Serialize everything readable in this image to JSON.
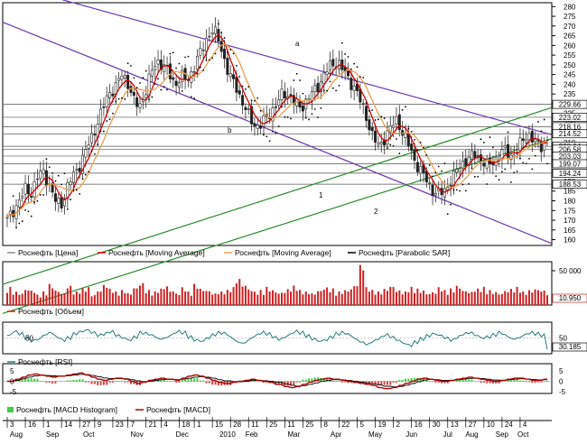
{
  "chart_data": {
    "type": "candlestick",
    "price": {
      "ticks": [
        160,
        165,
        170,
        175,
        180,
        185,
        190,
        195,
        200,
        205,
        210,
        215,
        220,
        225,
        230,
        235,
        240,
        245,
        250,
        255,
        260,
        265,
        270,
        275,
        280
      ],
      "ylim": [
        157,
        282
      ],
      "closes": [
        170,
        175,
        180,
        186,
        184,
        192,
        195,
        188,
        180,
        178,
        187,
        193,
        198,
        205,
        212,
        220,
        228,
        236,
        238,
        245,
        242,
        232,
        228,
        236,
        246,
        252,
        250,
        245,
        240,
        244,
        242,
        248,
        255,
        262,
        268,
        265,
        255,
        244,
        240,
        232,
        225,
        220,
        218,
        222,
        226,
        230,
        236,
        234,
        230,
        228,
        232,
        236,
        240,
        246,
        250,
        252,
        247,
        242,
        238,
        230,
        222,
        212,
        208,
        213,
        218,
        222,
        214,
        208,
        200,
        195,
        190,
        185,
        183,
        186,
        190,
        196,
        200,
        202,
        204,
        201,
        198,
        200,
        204,
        206,
        203,
        206,
        212,
        214,
        210,
        208,
        212
      ],
      "price_boxes": [
        "229.66",
        "223.02",
        "218.16",
        "214.52",
        "208.04",
        "206.58",
        "203.03",
        "199.07",
        "194.24",
        "188.53"
      ],
      "channel_labels": [
        "a",
        "b",
        "1",
        "2"
      ]
    },
    "legend_main": [
      {
        "name": "Роснефть [Цена]",
        "color": "#8a8a8a"
      },
      {
        "name": "Роснефть [Moving Average]",
        "color": "#cc0000"
      },
      {
        "name": "Роснефть [Moving Average]",
        "color": "#e8a050"
      },
      {
        "name": "Роснефть [Parabolic SAR]",
        "color": "#000000"
      }
    ],
    "volume": {
      "tick_top": "50 000",
      "current": "10.950",
      "legend": "Роснефть [Объем]",
      "values": [
        12,
        9,
        8,
        11,
        10,
        7,
        9,
        14,
        10,
        8,
        13,
        9,
        11,
        12,
        7,
        10,
        14,
        11,
        9,
        10,
        8,
        12,
        15,
        10,
        9,
        11,
        13,
        10,
        8,
        12,
        9,
        14,
        11,
        10,
        8,
        9,
        10,
        12,
        18,
        14,
        11,
        9,
        10,
        12,
        10,
        8,
        9,
        11,
        13,
        10,
        9,
        8,
        10,
        12,
        11,
        9,
        10,
        11,
        14,
        28,
        12,
        10,
        9,
        11,
        13,
        10,
        9,
        12,
        11,
        10,
        8,
        9,
        12,
        10,
        11,
        13,
        10,
        9,
        11,
        12,
        10,
        9,
        8,
        10,
        11,
        12,
        9,
        10,
        11,
        10,
        8
      ]
    },
    "rsi": {
      "tick": "50",
      "current": "30.185",
      "legend": "Роснефть [RSI]",
      "values": [
        55,
        62,
        58,
        50,
        45,
        48,
        56,
        60,
        52,
        46,
        50,
        58,
        62,
        65,
        60,
        55,
        58,
        62,
        55,
        50,
        46,
        52,
        60,
        58,
        54,
        48,
        50,
        56,
        62,
        60,
        52,
        46,
        44,
        50,
        56,
        60,
        58,
        50,
        42,
        40,
        48,
        55,
        60,
        58,
        52,
        46,
        50,
        56,
        62,
        60,
        54,
        48,
        44,
        46,
        52,
        58,
        60,
        56,
        48,
        42,
        38,
        44,
        50,
        56,
        52,
        46,
        40,
        36,
        42,
        48,
        54,
        58,
        55,
        50,
        46,
        52,
        58,
        60,
        55,
        50,
        52,
        56,
        60,
        54,
        48,
        50,
        56,
        60,
        58,
        55,
        30
      ]
    },
    "macd": {
      "ticks": [
        "5",
        "0",
        "-5"
      ],
      "legend": [
        "Роснефть [MACD Histogram]",
        "Роснефть [MACD]"
      ],
      "macd": [
        0,
        1,
        2,
        3,
        3.5,
        3,
        2.5,
        2,
        2.5,
        3,
        3.5,
        4,
        3,
        2,
        1,
        0.5,
        1,
        1.5,
        1,
        0,
        -1,
        -0.5,
        0.5,
        1,
        1.5,
        1,
        0.5,
        1.5,
        2.5,
        3,
        2.5,
        1.5,
        0.5,
        -0.5,
        -1,
        -0.5,
        0,
        0.5,
        1,
        0.5,
        0,
        -0.5,
        -1.5,
        -2.5,
        -3,
        -2.5,
        -1.5,
        -0.5,
        0.5,
        1,
        1.5,
        1,
        0.5,
        0,
        -0.5,
        -1,
        -1.5,
        -2,
        -3,
        -3.5,
        -3,
        -2,
        -1,
        0,
        1,
        1.5,
        1,
        0.5,
        0,
        0.5,
        1,
        1.5,
        2,
        1.5,
        1,
        0.5,
        0,
        0.5,
        1,
        1.5,
        1.5,
        1,
        0.5,
        0.5,
        1
      ],
      "signal": [
        0,
        0.5,
        1.2,
        2,
        2.6,
        2.9,
        2.8,
        2.6,
        2.5,
        2.7,
        3,
        3.3,
        3.2,
        2.8,
        2.2,
        1.6,
        1.3,
        1.3,
        1.2,
        0.8,
        0.2,
        -0.2,
        0,
        0.4,
        0.8,
        0.9,
        0.8,
        1,
        1.5,
        2,
        2.2,
        2,
        1.5,
        0.8,
        0.2,
        -0.2,
        -0.2,
        0,
        0.4,
        0.5,
        0.3,
        0,
        -0.5,
        -1.2,
        -1.9,
        -2.3,
        -2.1,
        -1.5,
        -0.8,
        -0.1,
        0.5,
        0.8,
        0.7,
        0.4,
        0,
        -0.4,
        -0.8,
        -1.2,
        -1.8,
        -2.4,
        -2.7,
        -2.5,
        -1.9,
        -1.1,
        -0.2,
        0.6,
        0.9,
        0.8,
        0.5,
        0.5,
        0.7,
        1,
        1.4,
        1.5,
        1.3,
        1,
        0.6,
        0.5,
        0.7,
        1,
        1.2,
        1.1,
        0.9,
        0.7,
        0.8
      ]
    },
    "x_axis": {
      "days": [
        {
          "label": "3",
          "i": 0
        },
        {
          "label": "16",
          "i": 6
        },
        {
          "label": "1",
          "i": 12
        },
        {
          "label": "14",
          "i": 18
        },
        {
          "label": "27",
          "i": 24
        },
        {
          "label": "9",
          "i": 29
        },
        {
          "label": "23",
          "i": 35
        },
        {
          "label": "7",
          "i": 40
        },
        {
          "label": "21",
          "i": 46
        },
        {
          "label": "4",
          "i": 51
        },
        {
          "label": "18",
          "i": 57
        },
        {
          "label": "1",
          "i": 62
        },
        {
          "label": "15",
          "i": 68
        },
        {
          "label": "28",
          "i": 74
        },
        {
          "label": "11",
          "i": 80
        },
        {
          "label": "25",
          "i": 86
        },
        {
          "label": "11",
          "i": 92
        },
        {
          "label": "25",
          "i": 98
        },
        {
          "label": "8",
          "i": 104
        },
        {
          "label": "22",
          "i": 110
        },
        {
          "label": "5",
          "i": 116
        },
        {
          "label": "19",
          "i": 122
        },
        {
          "label": "2",
          "i": 128
        },
        {
          "label": "16",
          "i": 134
        },
        {
          "label": "30",
          "i": 140
        },
        {
          "label": "13",
          "i": 146
        },
        {
          "label": "27",
          "i": 152
        },
        {
          "label": "10",
          "i": 158
        },
        {
          "label": "24",
          "i": 164
        },
        {
          "label": "4",
          "i": 170
        }
      ],
      "months": [
        {
          "label": "Aug",
          "i": 3
        },
        {
          "label": "Sep",
          "i": 15
        },
        {
          "label": "Oct",
          "i": 27
        },
        {
          "label": "Nov",
          "i": 43
        },
        {
          "label": "Dec",
          "i": 58
        },
        {
          "label": "2010",
          "i": 73
        },
        {
          "label": "Feb",
          "i": 81
        },
        {
          "label": "Mar",
          "i": 95
        },
        {
          "label": "Apr",
          "i": 109
        },
        {
          "label": "May",
          "i": 122
        },
        {
          "label": "Jun",
          "i": 134
        },
        {
          "label": "Jul",
          "i": 146
        },
        {
          "label": "Aug",
          "i": 154
        },
        {
          "label": "Sep",
          "i": 164
        },
        {
          "label": "Oct",
          "i": 171
        }
      ]
    }
  }
}
